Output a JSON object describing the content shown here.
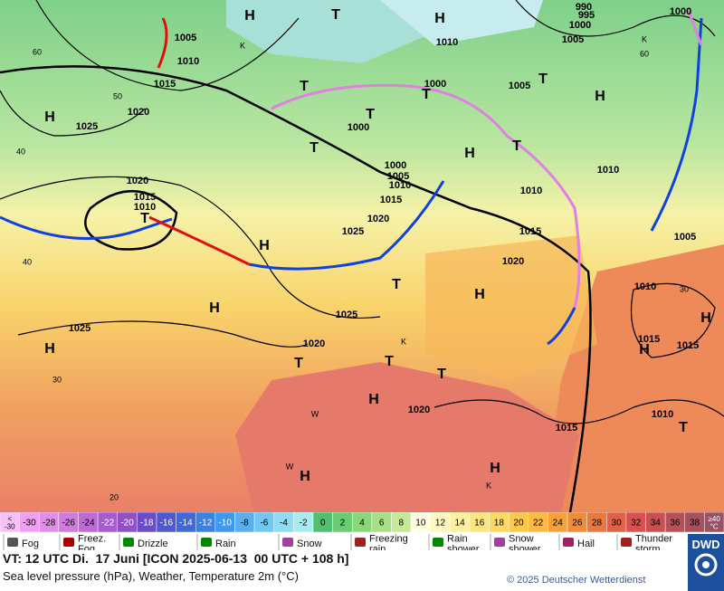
{
  "map": {
    "labels": [
      "1005",
      "1010",
      "1015",
      "1020",
      "1025",
      "H",
      "1020",
      "1015",
      "1010",
      "T",
      "H",
      "1025",
      "H",
      "H",
      "1025",
      "1020",
      "T",
      "T",
      "T",
      "H",
      "1020",
      "H",
      "H",
      "H",
      "1020",
      "1015",
      "1025",
      "1020",
      "1015",
      "1010",
      "1005",
      "1000",
      "1000",
      "T",
      "T",
      "T",
      "T",
      "1000",
      "1010",
      "H",
      "T",
      "H",
      "K",
      "H",
      "1005",
      "T",
      "1010",
      "1010",
      "T",
      "H",
      "990",
      "995",
      "1000",
      "1005",
      "1000",
      "K",
      "1005",
      "1010",
      "1015",
      "1015",
      "H",
      "H",
      "1010",
      "T",
      "1015",
      "T",
      "60",
      "50",
      "40",
      "40",
      "30",
      "20",
      "60",
      "30",
      "K",
      "W",
      "W",
      "K"
    ]
  },
  "scale": {
    "first": "<\n-30",
    "values": [
      -30,
      -28,
      -26,
      -24,
      -22,
      -20,
      -18,
      -16,
      -14,
      -12,
      -10,
      -8,
      -6,
      -4,
      -2,
      0,
      2,
      4,
      6,
      8,
      10,
      12,
      14,
      16,
      18,
      20,
      22,
      24,
      26,
      28,
      30,
      32,
      34,
      36,
      38
    ],
    "last": "≥40\n°C"
  },
  "legend": [
    "Fog",
    "Freez.\nFog",
    "Drizzle",
    "Rain",
    "Snow",
    "Freezing\nrain",
    "Rain\nshower",
    "Snow\nshower",
    "Hail",
    "Thunder\nstorm"
  ],
  "footer": {
    "valid_time": "VT: 12 UTC Di.  17 Juni [ICON 2025-06-13  00 UTC + 108 h]",
    "subtitle": "Sea level pressure (hPa), Weather, Temperature 2m (°C)",
    "copyright": "© 2025 Deutscher Wetterdienst",
    "logo": "DWD"
  }
}
